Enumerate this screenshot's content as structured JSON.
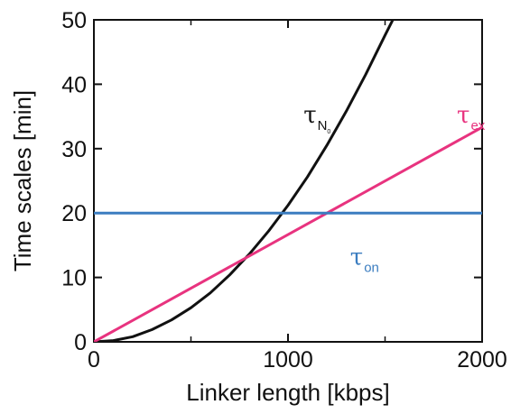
{
  "chart_data": {
    "type": "line",
    "title": "",
    "xlabel": "Linker length [kbps]",
    "ylabel": "Time scales [min]",
    "xlim": [
      0,
      2000
    ],
    "ylim": [
      0,
      50
    ],
    "xticks": [
      0,
      1000,
      2000
    ],
    "yticks": [
      0,
      10,
      20,
      30,
      40,
      50
    ],
    "x_tick_labels": [
      "0",
      "1000",
      "2000"
    ],
    "y_tick_labels": [
      "0",
      "10",
      "20",
      "30",
      "40",
      "50"
    ],
    "minor_xticks": [
      500,
      1500
    ],
    "grid": false,
    "legend": "none",
    "series": [
      {
        "key": "tau_N0",
        "color": "#111111",
        "points": [
          [
            0,
            0
          ],
          [
            100,
            0.2
          ],
          [
            200,
            0.8
          ],
          [
            300,
            1.9
          ],
          [
            400,
            3.4
          ],
          [
            500,
            5.3
          ],
          [
            600,
            7.6
          ],
          [
            700,
            10.4
          ],
          [
            800,
            13.6
          ],
          [
            900,
            17.2
          ],
          [
            1000,
            21.2
          ],
          [
            1100,
            25.6
          ],
          [
            1200,
            30.5
          ],
          [
            1300,
            35.8
          ],
          [
            1400,
            41.5
          ],
          [
            1500,
            47.6
          ],
          [
            1540,
            50
          ]
        ]
      },
      {
        "key": "tau_ex",
        "color": "#e8337f",
        "points": [
          [
            0,
            0
          ],
          [
            2000,
            33.3
          ]
        ]
      },
      {
        "key": "tau_on",
        "color": "#3b7dc0",
        "points": [
          [
            0,
            20
          ],
          [
            2000,
            20
          ]
        ]
      }
    ],
    "annotations": [
      {
        "series": "tau_N0",
        "symbol": "τ",
        "sub": "N",
        "subsub": "0",
        "color": "#111111",
        "x": 1080,
        "y": 34
      },
      {
        "series": "tau_ex",
        "symbol": "τ",
        "sub": "ex",
        "color": "#e8337f",
        "x": 1870,
        "y": 34
      },
      {
        "series": "tau_on",
        "symbol": "τ",
        "sub": "on",
        "color": "#3b7dc0",
        "x": 1320,
        "y": 12
      }
    ]
  }
}
